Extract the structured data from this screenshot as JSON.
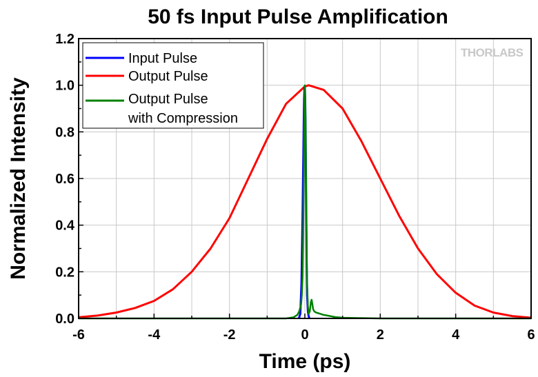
{
  "chart_data": {
    "type": "line",
    "title": "50 fs Input Pulse Amplification",
    "xlabel": "Time (ps)",
    "ylabel": "Normalized Intensity",
    "xlim": [
      -6,
      6
    ],
    "ylim": [
      0,
      1.2
    ],
    "x_ticks": [
      "-6",
      "-4",
      "-2",
      "0",
      "2",
      "4",
      "6"
    ],
    "y_ticks": [
      "0.0",
      "0.2",
      "0.4",
      "0.6",
      "0.8",
      "1.0",
      "1.2"
    ],
    "grid": true,
    "legend_position": "top-left",
    "series": [
      {
        "name": "Input Pulse",
        "color": "#0000ff",
        "x": [
          -0.16,
          -0.12,
          -0.09,
          -0.06,
          -0.04,
          -0.03,
          -0.02,
          -0.01,
          0.0,
          0.01,
          0.02,
          0.03,
          0.04,
          0.05,
          0.06,
          0.08,
          0.1,
          0.12
        ],
        "y": [
          0.0,
          0.02,
          0.15,
          0.45,
          0.7,
          0.85,
          0.94,
          0.99,
          0.99,
          0.93,
          0.8,
          0.6,
          0.4,
          0.22,
          0.1,
          0.03,
          0.01,
          0.0
        ]
      },
      {
        "name": "Output Pulse",
        "color": "#ff0000",
        "x": [
          -6.0,
          -5.5,
          -5.0,
          -4.5,
          -4.0,
          -3.5,
          -3.0,
          -2.5,
          -2.0,
          -1.5,
          -1.0,
          -0.5,
          0.0,
          0.1,
          0.5,
          1.0,
          1.5,
          2.0,
          2.5,
          3.0,
          3.5,
          4.0,
          4.5,
          5.0,
          5.5,
          6.0
        ],
        "y": [
          0.005,
          0.012,
          0.025,
          0.045,
          0.075,
          0.125,
          0.2,
          0.3,
          0.43,
          0.6,
          0.77,
          0.92,
          0.995,
          1.0,
          0.98,
          0.9,
          0.76,
          0.6,
          0.44,
          0.3,
          0.19,
          0.11,
          0.055,
          0.025,
          0.01,
          0.003
        ]
      },
      {
        "name": "Output Pulse with Compression",
        "color": "#008000",
        "x": [
          -6.0,
          -2.0,
          -0.5,
          -0.3,
          -0.2,
          -0.15,
          -0.1,
          -0.08,
          -0.06,
          -0.05,
          -0.04,
          -0.03,
          -0.02,
          -0.01,
          0.0,
          0.01,
          0.02,
          0.03,
          0.04,
          0.05,
          0.06,
          0.08,
          0.1,
          0.13,
          0.16,
          0.18,
          0.2,
          0.22,
          0.25,
          0.3,
          0.4,
          0.5,
          0.6,
          0.8,
          1.0,
          2.0,
          6.0
        ],
        "y": [
          0.0,
          0.0,
          0.0,
          0.005,
          0.015,
          0.03,
          0.06,
          0.1,
          0.18,
          0.3,
          0.45,
          0.62,
          0.8,
          0.94,
          1.0,
          0.95,
          0.82,
          0.62,
          0.42,
          0.26,
          0.14,
          0.05,
          0.02,
          0.03,
          0.07,
          0.08,
          0.06,
          0.04,
          0.03,
          0.025,
          0.02,
          0.015,
          0.012,
          0.006,
          0.003,
          0.0,
          0.0
        ]
      }
    ],
    "legend_entries": [
      {
        "line1": "Input Pulse",
        "line2": ""
      },
      {
        "line1": "Output Pulse",
        "line2": ""
      },
      {
        "line1": "Output Pulse",
        "line2": "with Compression"
      }
    ]
  },
  "watermark": {
    "text": "THORLABS"
  }
}
